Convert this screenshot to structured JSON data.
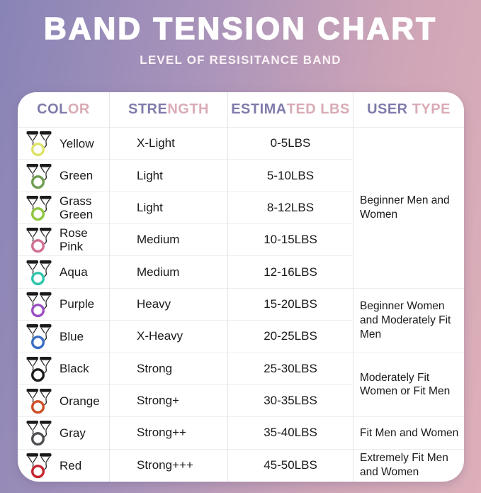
{
  "title": "BAND TENSION CHART",
  "subtitle": "LEVEL OF RESISITANCE BAND",
  "colors": {
    "background_left": "#8884b6",
    "background_right": "#ddafb9",
    "header_purple": "#7f7bab",
    "header_pink": "#d9abb5",
    "card_background": "#ffffff",
    "grid_line": "#ededef",
    "row_text": "#1a1a1a"
  },
  "icons": {
    "row_icon": "resistance-band-icon"
  },
  "chart_data": {
    "type": "table",
    "title": "BAND TENSION CHART",
    "subtitle": "LEVEL OF RESISITANCE BAND",
    "columns": [
      {
        "label": "COLOR",
        "purple_letters": 3
      },
      {
        "label": "STRENGTH",
        "purple_letters": 4
      },
      {
        "label": "ESTIMATED LBS",
        "purple_letters": 6
      },
      {
        "label": "USER TYPE",
        "purple_letters": 4
      }
    ],
    "rows": [
      {
        "color": "Yellow",
        "hex": "#dde269",
        "strength": "X-Light",
        "lbs": "0-5LBS"
      },
      {
        "color": "Green",
        "hex": "#6f9e52",
        "strength": "Light",
        "lbs": "5-10LBS"
      },
      {
        "color": "Grass Green",
        "hex": "#8dc63f",
        "strength": "Light",
        "lbs": "8-12LBS"
      },
      {
        "color": "Rose Pink",
        "hex": "#d06e93",
        "strength": "Medium",
        "lbs": "10-15LBS"
      },
      {
        "color": "Aqua",
        "hex": "#2cc5ac",
        "strength": "Medium",
        "lbs": "12-16LBS"
      },
      {
        "color": "Purple",
        "hex": "#9a4ec2",
        "strength": "Heavy",
        "lbs": "15-20LBS"
      },
      {
        "color": "Blue",
        "hex": "#3a6ec5",
        "strength": "X-Heavy",
        "lbs": "20-25LBS"
      },
      {
        "color": "Black",
        "hex": "#1d1d1d",
        "strength": "Strong",
        "lbs": "25-30LBS"
      },
      {
        "color": "Orange",
        "hex": "#cd4e26",
        "strength": "Strong+",
        "lbs": "30-35LBS"
      },
      {
        "color": "Gray",
        "hex": "#4e4e52",
        "strength": "Strong++",
        "lbs": "35-40LBS"
      },
      {
        "color": "Red",
        "hex": "#c72430",
        "strength": "Strong+++",
        "lbs": "45-50LBS"
      }
    ],
    "user_type_groups": [
      {
        "label": "Beginner Men and Women",
        "row_start": 0,
        "row_span": 5
      },
      {
        "label": "Beginner Women and Moderately Fit Men",
        "row_start": 5,
        "row_span": 2
      },
      {
        "label": "Moderately Fit Women or Fit Men",
        "row_start": 7,
        "row_span": 2
      },
      {
        "label": "Fit Men and Women",
        "row_start": 9,
        "row_span": 1
      },
      {
        "label": "Extremely Fit Men and Women",
        "row_start": 10,
        "row_span": 1
      }
    ]
  }
}
